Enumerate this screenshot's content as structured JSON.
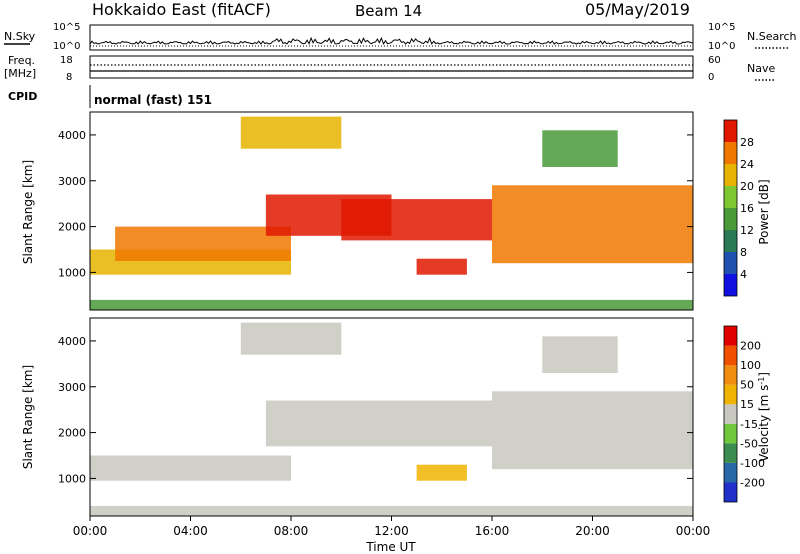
{
  "header": {
    "radar": "Hokkaido East (fitACF)",
    "beam": "Beam 14",
    "date": "05/May/2019"
  },
  "nsky_panel": {
    "left_label": "N.Sky",
    "right_label": "N.Search",
    "ticks_left": [
      "10^5",
      "10^0"
    ],
    "ticks_right": [
      "10^5",
      "10^0"
    ]
  },
  "freq_panel": {
    "left_label_1": "Freq.",
    "left_label_2": "[MHz]",
    "left_ticks": [
      "18",
      "8"
    ],
    "right_label": "Nave",
    "right_ticks": [
      "60",
      "0"
    ]
  },
  "cpid": {
    "label": "CPID",
    "value": "normal (fast) 151"
  },
  "chart_data": [
    {
      "type": "heatmap",
      "name": "power",
      "ylabel": "Slant Range [km]",
      "yticks": [
        "1000",
        "2000",
        "3000",
        "4000"
      ],
      "ylim": [
        180,
        4500
      ],
      "xlim": [
        0,
        24
      ],
      "colorbar": {
        "label": "Power [dB]",
        "ticks": [
          "4",
          "8",
          "12",
          "16",
          "20",
          "24",
          "28"
        ],
        "range": [
          0,
          32
        ],
        "colors": [
          "#1010e0",
          "#2050b0",
          "#2a7a55",
          "#4a9a3a",
          "#7ec832",
          "#e6b400",
          "#f07800",
          "#e01800"
        ]
      },
      "regions": [
        {
          "x": [
            0,
            24
          ],
          "y": [
            180,
            400
          ],
          "value": 12
        },
        {
          "x": [
            0,
            8
          ],
          "y": [
            950,
            1500
          ],
          "value": 22
        },
        {
          "x": [
            1,
            8
          ],
          "y": [
            1250,
            2000
          ],
          "value": 26
        },
        {
          "x": [
            7,
            12
          ],
          "y": [
            1800,
            2700
          ],
          "value": 28
        },
        {
          "x": [
            10,
            16
          ],
          "y": [
            1700,
            2600
          ],
          "value": 30
        },
        {
          "x": [
            16,
            24
          ],
          "y": [
            1200,
            2900
          ],
          "value": 24
        },
        {
          "x": [
            13,
            15
          ],
          "y": [
            950,
            1300
          ],
          "value": 30
        },
        {
          "x": [
            6,
            10
          ],
          "y": [
            3700,
            4400
          ],
          "value": 22
        },
        {
          "x": [
            18,
            21
          ],
          "y": [
            3300,
            4100
          ],
          "value": 14
        }
      ]
    },
    {
      "type": "heatmap",
      "name": "velocity",
      "ylabel": "Slant Range [km]",
      "yticks": [
        "1000",
        "2000",
        "3000",
        "4000"
      ],
      "ylim": [
        180,
        4500
      ],
      "xlim": [
        0,
        24
      ],
      "xticks": [
        "00:00",
        "04:00",
        "08:00",
        "12:00",
        "16:00",
        "20:00",
        "00:00"
      ],
      "xlabel": "Time UT",
      "colorbar": {
        "label_main": "Velocity [m s",
        "label_sup": "-1",
        "label_end": "]",
        "ticks": [
          "200",
          "100",
          "50",
          "15",
          "-15",
          "-50",
          "-100",
          "-200"
        ],
        "range": [
          -250,
          250
        ],
        "colors": [
          "#2030c8",
          "#2868a8",
          "#3c8c50",
          "#70c83c",
          "#c8c8c0",
          "#f0b400",
          "#f08c10",
          "#f05000",
          "#e00000"
        ]
      },
      "regions": [
        {
          "x": [
            0,
            24
          ],
          "y": [
            180,
            400
          ],
          "value": 0
        },
        {
          "x": [
            0,
            8
          ],
          "y": [
            950,
            1500
          ],
          "value": 0
        },
        {
          "x": [
            7,
            16
          ],
          "y": [
            1700,
            2700
          ],
          "value": 0
        },
        {
          "x": [
            16,
            24
          ],
          "y": [
            1200,
            2900
          ],
          "value": 20
        },
        {
          "x": [
            13,
            15
          ],
          "y": [
            950,
            1300
          ],
          "value": 40
        },
        {
          "x": [
            6,
            10
          ],
          "y": [
            3700,
            4400
          ],
          "value": -10
        },
        {
          "x": [
            18,
            21
          ],
          "y": [
            3300,
            4100
          ],
          "value": 0
        }
      ]
    }
  ]
}
